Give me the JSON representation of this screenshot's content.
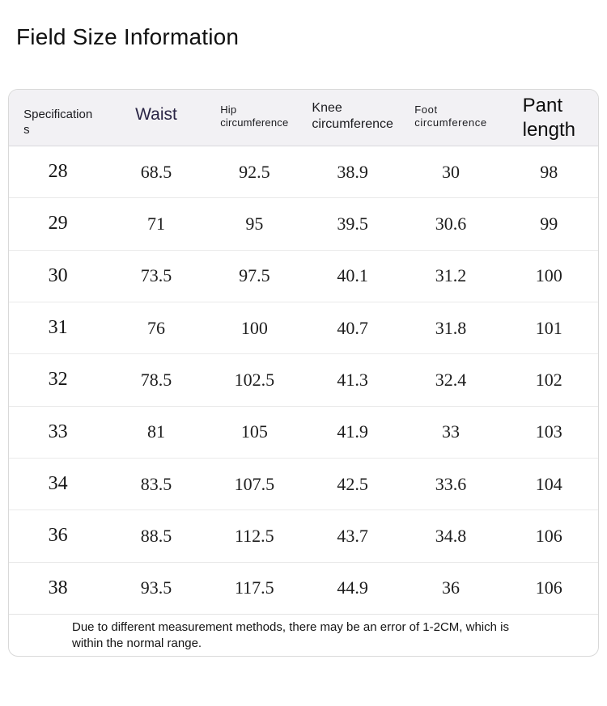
{
  "page": {
    "title": "Field Size Information"
  },
  "table": {
    "columns": [
      {
        "key": "spec",
        "label": "Specification\ns"
      },
      {
        "key": "waist",
        "label": "Waist"
      },
      {
        "key": "hip",
        "label": "Hip\ncircumference"
      },
      {
        "key": "knee",
        "label": "Knee\ncircumference"
      },
      {
        "key": "foot",
        "label": "Foot\ncircumference"
      },
      {
        "key": "pant",
        "label": "Pant\nlength"
      }
    ],
    "rows": [
      [
        "28",
        "68.5",
        "92.5",
        "38.9",
        "30",
        "98"
      ],
      [
        "29",
        "71",
        "95",
        "39.5",
        "30.6",
        "99"
      ],
      [
        "30",
        "73.5",
        "97.5",
        "40.1",
        "31.2",
        "100"
      ],
      [
        "31",
        "76",
        "100",
        "40.7",
        "31.8",
        "101"
      ],
      [
        "32",
        "78.5",
        "102.5",
        "41.3",
        "32.4",
        "102"
      ],
      [
        "33",
        "81",
        "105",
        "41.9",
        "33",
        "103"
      ],
      [
        "34",
        "83.5",
        "107.5",
        "42.5",
        "33.6",
        "104"
      ],
      [
        "36",
        "88.5",
        "112.5",
        "43.7",
        "34.8",
        "106"
      ],
      [
        "38",
        "93.5",
        "117.5",
        "44.9",
        "36",
        "106"
      ]
    ],
    "note": "Due to different measurement methods, there may be an error of 1-2CM, which is\nwithin the normal range.",
    "colors": {
      "header_bg": "#f2f1f4",
      "waist_header_text": "#2a2545",
      "border": "#d9d9d9",
      "row_separator": "#eaeaea",
      "data_text": "#1d1d1d"
    }
  }
}
